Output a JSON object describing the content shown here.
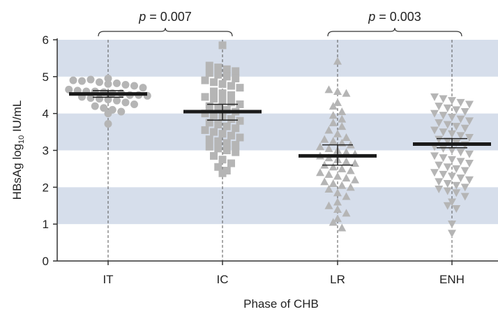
{
  "chart_data": {
    "type": "scatter",
    "title": "",
    "xlabel": "Phase of CHB",
    "ylabel_main": "HBsAg log",
    "ylabel_sub": "10",
    "ylabel_unit": " IU/mL",
    "ylim": [
      0,
      6
    ],
    "yticks": [
      "0",
      "1",
      "2",
      "3",
      "4",
      "5",
      "6"
    ],
    "grid_bands": [
      [
        1,
        2
      ],
      [
        3,
        4
      ],
      [
        5,
        6
      ]
    ],
    "colors": {
      "band": "#d6deeb",
      "marker": "#b5b5b5",
      "mean": "#1a1a1a",
      "axis": "#333333"
    },
    "categories": [
      "IT",
      "IC",
      "LR",
      "ENH"
    ],
    "series": [
      {
        "category": "IT",
        "marker": "circle",
        "mean": 4.53,
        "ci": [
          4.44,
          4.62
        ],
        "values": [
          4.95,
          4.9,
          4.88,
          4.92,
          4.85,
          4.8,
          4.82,
          4.78,
          4.75,
          4.7,
          4.65,
          4.62,
          4.6,
          4.6,
          4.58,
          4.55,
          4.55,
          4.5,
          4.5,
          4.48,
          4.45,
          4.42,
          4.4,
          4.38,
          4.35,
          4.3,
          4.25,
          4.2,
          4.15,
          4.1,
          4.05,
          4.0,
          3.72
        ]
      },
      {
        "category": "IC",
        "marker": "square",
        "mean": 4.05,
        "ci": [
          3.82,
          4.25
        ],
        "values": [
          5.85,
          5.3,
          5.25,
          5.2,
          5.15,
          5.1,
          5.05,
          5.0,
          4.95,
          4.9,
          4.85,
          4.8,
          4.75,
          4.7,
          4.6,
          4.55,
          4.5,
          4.45,
          4.4,
          4.35,
          4.3,
          4.25,
          4.2,
          4.15,
          4.1,
          4.05,
          4.0,
          3.95,
          3.9,
          3.85,
          3.8,
          3.75,
          3.7,
          3.65,
          3.6,
          3.55,
          3.5,
          3.45,
          3.4,
          3.35,
          3.3,
          3.25,
          3.2,
          3.15,
          3.1,
          3.05,
          3.0,
          2.95,
          2.85,
          2.75,
          2.65,
          2.55,
          2.45,
          2.38
        ]
      },
      {
        "category": "LR",
        "marker": "triangle-up",
        "mean": 2.85,
        "ci": [
          2.6,
          3.15
        ],
        "values": [
          5.42,
          4.65,
          4.6,
          4.55,
          4.3,
          4.2,
          4.05,
          3.95,
          3.85,
          3.75,
          3.65,
          3.55,
          3.45,
          3.35,
          3.3,
          3.25,
          3.2,
          3.15,
          3.1,
          3.05,
          3.0,
          2.95,
          2.9,
          2.85,
          2.8,
          2.75,
          2.7,
          2.65,
          2.6,
          2.55,
          2.5,
          2.45,
          2.4,
          2.35,
          2.3,
          2.25,
          2.2,
          2.15,
          2.1,
          2.05,
          2.0,
          1.95,
          1.85,
          1.75,
          1.6,
          1.5,
          1.4,
          1.3,
          1.15,
          1.05,
          0.9
        ]
      },
      {
        "category": "ENH",
        "marker": "triangle-down",
        "mean": 3.17,
        "ci": [
          3.07,
          3.32
        ],
        "values": [
          4.45,
          4.4,
          4.35,
          4.3,
          4.25,
          4.2,
          4.15,
          4.1,
          4.05,
          4.0,
          3.95,
          3.9,
          3.85,
          3.8,
          3.75,
          3.7,
          3.65,
          3.6,
          3.55,
          3.5,
          3.45,
          3.4,
          3.35,
          3.3,
          3.25,
          3.2,
          3.15,
          3.1,
          3.05,
          3.0,
          2.95,
          2.9,
          2.85,
          2.8,
          2.75,
          2.7,
          2.65,
          2.6,
          2.55,
          2.5,
          2.45,
          2.4,
          2.35,
          2.3,
          2.25,
          2.2,
          2.15,
          2.1,
          2.05,
          2.0,
          1.95,
          1.9,
          1.85,
          1.75,
          1.6,
          1.5,
          1.42,
          1.0,
          0.75
        ]
      }
    ],
    "comparisons": [
      {
        "from": "IT",
        "to": "IC",
        "label_prefix": "p",
        "label_value": " = 0.007"
      },
      {
        "from": "LR",
        "to": "ENH",
        "label_prefix": "p",
        "label_value": " = 0.003"
      }
    ]
  }
}
